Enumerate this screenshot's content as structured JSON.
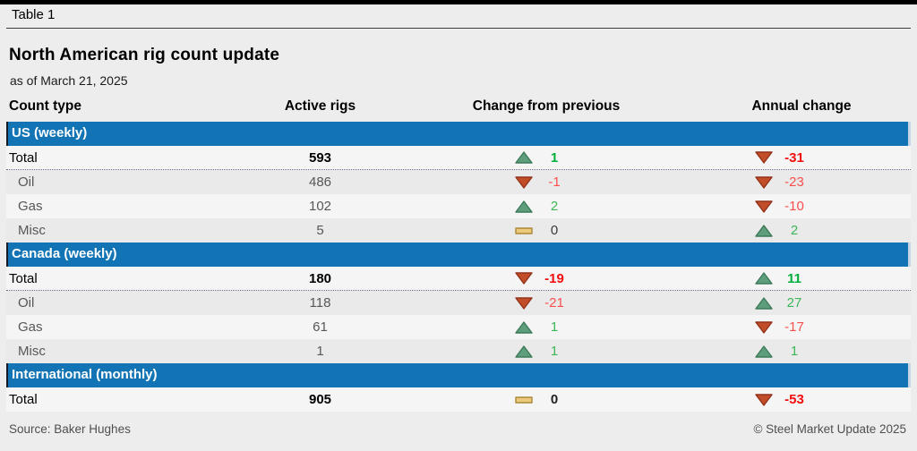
{
  "header": {
    "table_label": "Table 1",
    "title": "North American rig count update",
    "as_of": "as of March 21, 2025"
  },
  "chart_data": {
    "type": "table",
    "title": "North American rig count update",
    "subtitle": "as of March 21, 2025",
    "columns": [
      "Count type",
      "Active rigs",
      "Change from previous",
      "Annual change"
    ],
    "sections": [
      {
        "label": "US (weekly)",
        "rows": [
          {
            "name": "Total",
            "total": true,
            "active": "593",
            "change": {
              "dir": "up",
              "value": "1",
              "tone": "green"
            },
            "annual": {
              "dir": "down",
              "value": "-31",
              "tone": "red"
            }
          },
          {
            "name": "Oil",
            "total": false,
            "active": "486",
            "change": {
              "dir": "down",
              "value": "-1",
              "tone": "red"
            },
            "annual": {
              "dir": "down",
              "value": "-23",
              "tone": "red"
            }
          },
          {
            "name": "Gas",
            "total": false,
            "active": "102",
            "change": {
              "dir": "up",
              "value": "2",
              "tone": "green"
            },
            "annual": {
              "dir": "down",
              "value": "-10",
              "tone": "red"
            }
          },
          {
            "name": "Misc",
            "total": false,
            "active": "5",
            "change": {
              "dir": "flat",
              "value": "0",
              "tone": "neutral"
            },
            "annual": {
              "dir": "up",
              "value": "2",
              "tone": "green"
            }
          }
        ]
      },
      {
        "label": "Canada (weekly)",
        "rows": [
          {
            "name": "Total",
            "total": true,
            "active": "180",
            "change": {
              "dir": "down",
              "value": "-19",
              "tone": "red"
            },
            "annual": {
              "dir": "up",
              "value": "11",
              "tone": "green"
            }
          },
          {
            "name": "Oil",
            "total": false,
            "active": "118",
            "change": {
              "dir": "down",
              "value": "-21",
              "tone": "red"
            },
            "annual": {
              "dir": "up",
              "value": "27",
              "tone": "green"
            }
          },
          {
            "name": "Gas",
            "total": false,
            "active": "61",
            "change": {
              "dir": "up",
              "value": "1",
              "tone": "green"
            },
            "annual": {
              "dir": "down",
              "value": "-17",
              "tone": "red"
            }
          },
          {
            "name": "Misc",
            "total": false,
            "active": "1",
            "change": {
              "dir": "up",
              "value": "1",
              "tone": "green"
            },
            "annual": {
              "dir": "up",
              "value": "1",
              "tone": "green"
            }
          }
        ]
      },
      {
        "label": "International (monthly)",
        "rows": [
          {
            "name": "Total",
            "total": true,
            "active": "905",
            "change": {
              "dir": "flat",
              "value": "0",
              "tone": "neutral"
            },
            "annual": {
              "dir": "down",
              "value": "-53",
              "tone": "red"
            }
          }
        ]
      }
    ]
  },
  "footer": {
    "source": "Source: Baker Hughes",
    "copyright": "© Steel Market Update 2025"
  },
  "colors": {
    "band_blue": "#1274b4",
    "row_light": "#f5f5f5",
    "row_dark": "#eaeaea",
    "up_icon_fill": "#5f9e7d",
    "up_icon_stroke": "#3c7a5a",
    "down_icon_fill": "#c14e28",
    "down_icon_stroke": "#93321a",
    "flat_icon_fill": "#ecca7d",
    "flat_icon_stroke": "#ab8836",
    "green_value": "#00ae3c",
    "red_value": "#f10e0e"
  }
}
